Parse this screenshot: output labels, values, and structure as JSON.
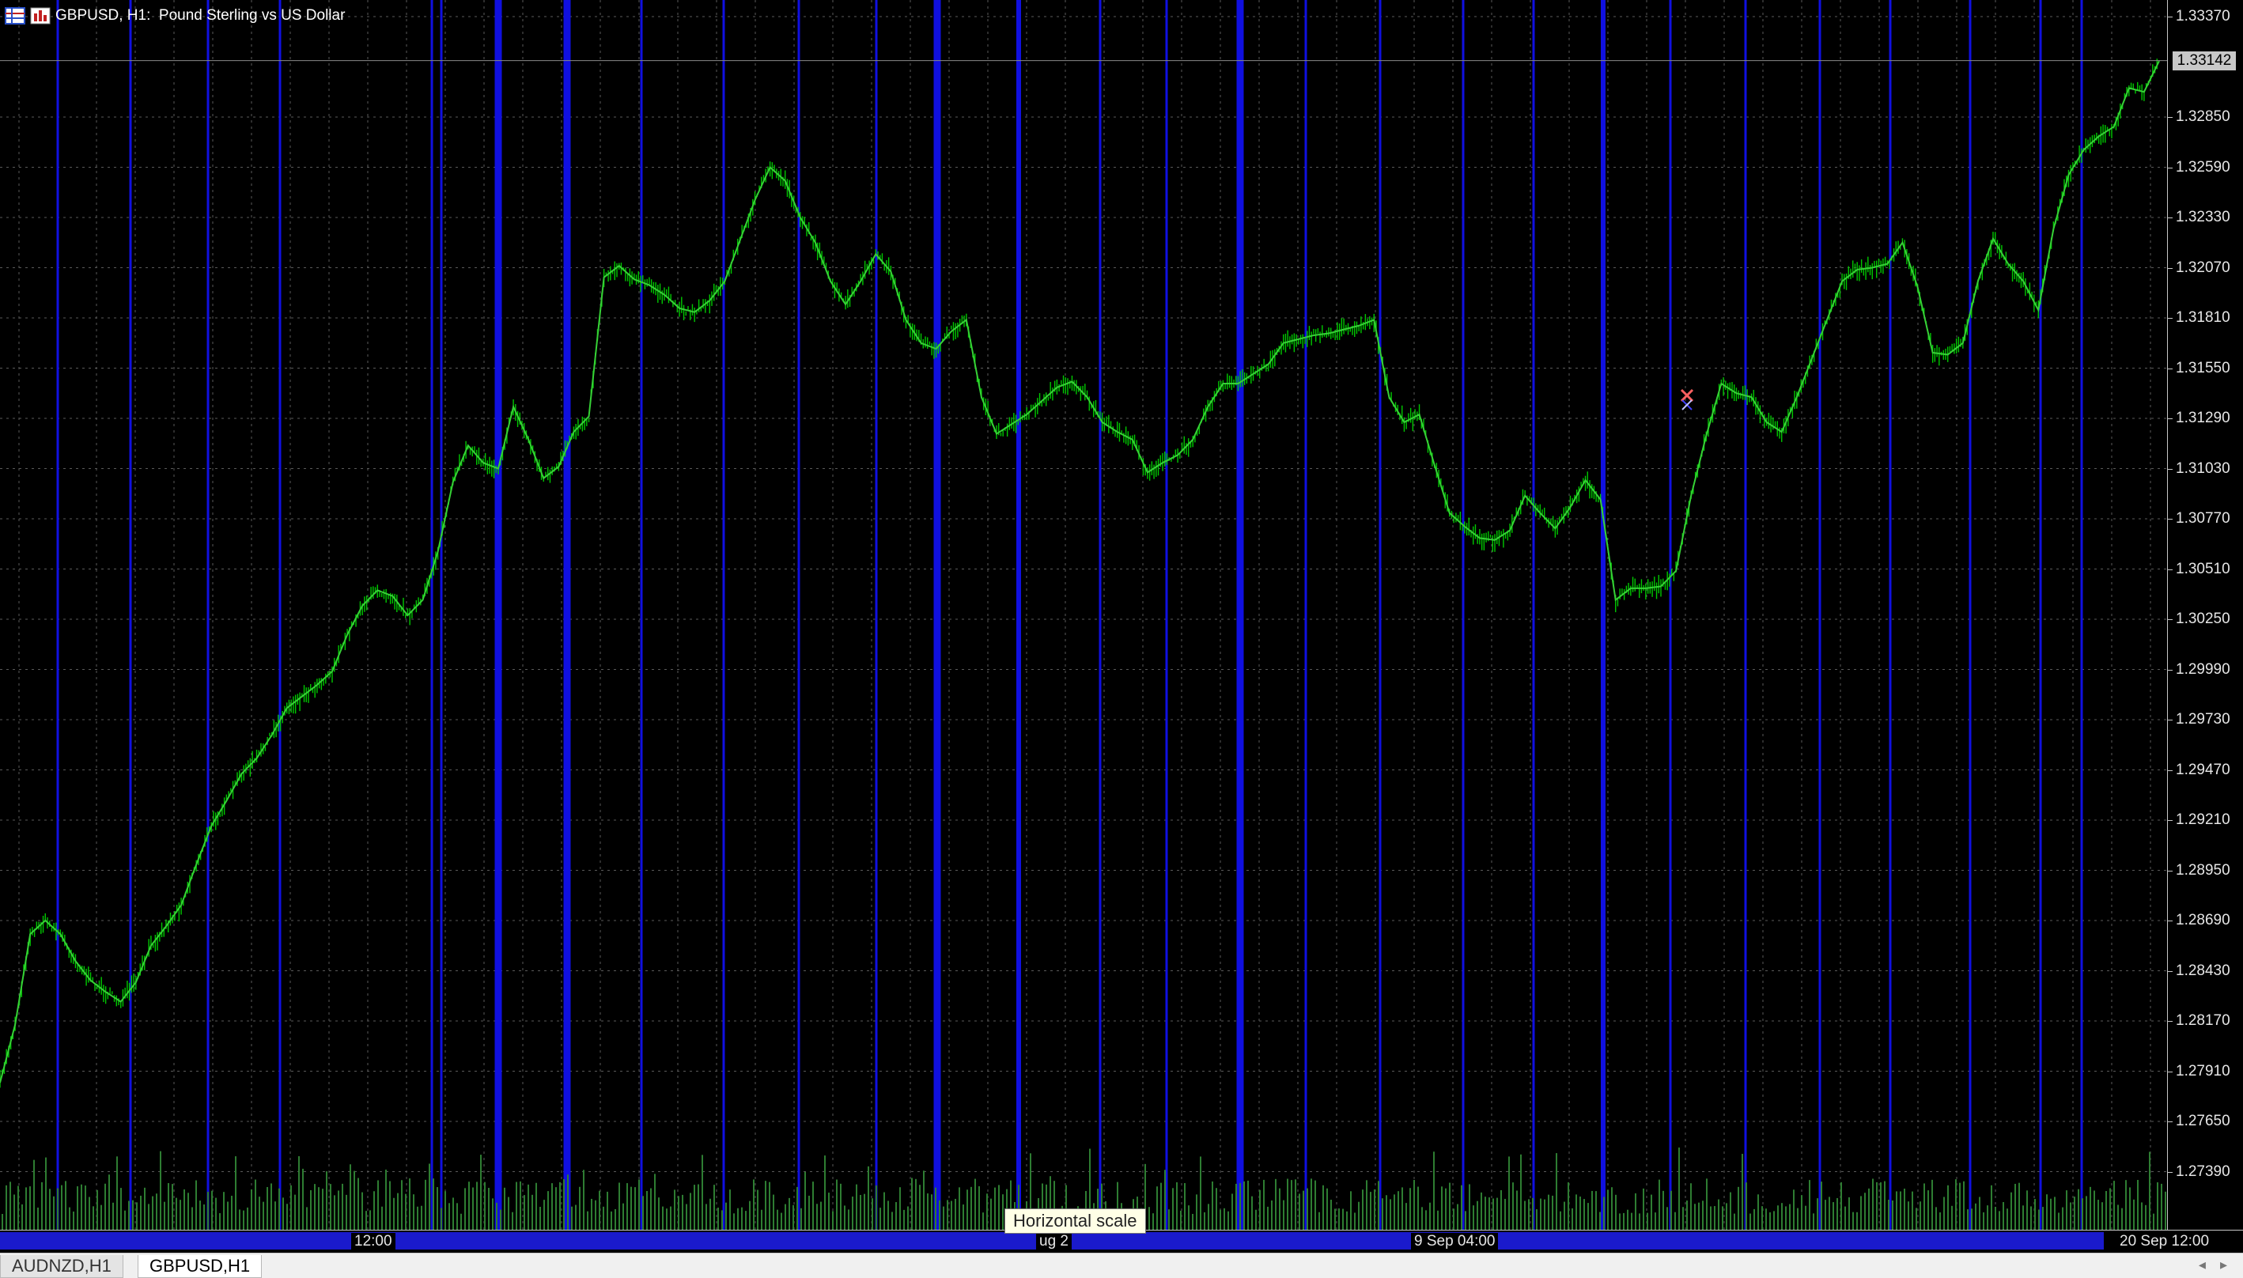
{
  "window": {
    "title": "GBPUSD, H1:  Pound Sterling vs US Dollar"
  },
  "price_scale": {
    "labels": [
      "1.33370",
      "1.32850",
      "1.32590",
      "1.32330",
      "1.32070",
      "1.31810",
      "1.31550",
      "1.31290",
      "1.31030",
      "1.30770",
      "1.30510",
      "1.30250",
      "1.29990",
      "1.29730",
      "1.29470",
      "1.29210",
      "1.28950",
      "1.28690",
      "1.28430",
      "1.28170",
      "1.27910",
      "1.27650",
      "1.27390"
    ],
    "current_price": "1.33142"
  },
  "time_scale": {
    "labels": [
      "12:00",
      "9 Sep 04:00",
      "20 Sep 12:00"
    ],
    "partial_label": "ug 2"
  },
  "tooltip": {
    "text": "Horizontal scale"
  },
  "tabs": [
    {
      "label": "AUDNZD,H1",
      "active": false
    },
    {
      "label": "GBPUSD,H1",
      "active": true
    }
  ],
  "colors": {
    "background": "#000000",
    "candles": "#00c800",
    "volume": "#2e7d32",
    "vertical_lines": "#1010e0",
    "grid": "#5a5a5a",
    "current_price_line": "#a0a0a0",
    "tooltip_bg": "#ffffe6"
  },
  "icons": {
    "menu": "grid-menu-icon",
    "chart": "chart-type-icon",
    "trade_marker": "trade-cross-icon",
    "scroll_left": "chevron-left-icon",
    "scroll_right": "chevron-right-icon"
  },
  "chart_data": {
    "type": "line",
    "symbol": "GBPUSD",
    "timeframe": "H1",
    "ylim": [
      1.2726,
      1.335
    ],
    "y_ticks": [
      1.3337,
      1.3285,
      1.3259,
      1.3233,
      1.3207,
      1.3181,
      1.3155,
      1.3129,
      1.3103,
      1.3077,
      1.3051,
      1.3025,
      1.2999,
      1.2973,
      1.2947,
      1.2921,
      1.2895,
      1.2869,
      1.2843,
      1.2817,
      1.2791,
      1.2765,
      1.2739
    ],
    "current_price": 1.33142,
    "series": [
      {
        "values": [
          1.2785,
          1.2815,
          1.2862,
          1.2869,
          1.2862,
          1.2848,
          1.2838,
          1.2832,
          1.2827,
          1.2837,
          1.2856,
          1.2866,
          1.2877,
          1.2898,
          1.2918,
          1.2931,
          1.2945,
          1.2953,
          1.2965,
          1.2979,
          1.2985,
          1.2991,
          1.2998,
          1.3017,
          1.3032,
          1.304,
          1.3037,
          1.3027,
          1.3035,
          1.306,
          1.3096,
          1.3115,
          1.3106,
          1.3103,
          1.3135,
          1.3118,
          1.3098,
          1.3104,
          1.3122,
          1.313,
          1.3202,
          1.3208,
          1.3201,
          1.3198,
          1.3193,
          1.3186,
          1.3184,
          1.319,
          1.32,
          1.3221,
          1.3242,
          1.3259,
          1.3252,
          1.3233,
          1.322,
          1.32,
          1.3188,
          1.32,
          1.3214,
          1.3205,
          1.318,
          1.3168,
          1.3165,
          1.3174,
          1.318,
          1.314,
          1.3121,
          1.3126,
          1.3131,
          1.3138,
          1.3145,
          1.3148,
          1.314,
          1.3127,
          1.3122,
          1.3118,
          1.3101,
          1.3106,
          1.311,
          1.3118,
          1.3135,
          1.3147,
          1.3147,
          1.3152,
          1.3157,
          1.3168,
          1.317,
          1.3172,
          1.3173,
          1.3175,
          1.3177,
          1.318,
          1.314,
          1.3127,
          1.3131,
          1.3105,
          1.308,
          1.3073,
          1.3067,
          1.3066,
          1.3071,
          1.3089,
          1.308,
          1.3072,
          1.3083,
          1.3097,
          1.3087,
          1.3035,
          1.3041,
          1.3041,
          1.3042,
          1.305,
          1.3089,
          1.312,
          1.3147,
          1.3142,
          1.314,
          1.3127,
          1.3122,
          1.314,
          1.316,
          1.318,
          1.32,
          1.3206,
          1.3207,
          1.3209,
          1.322,
          1.3197,
          1.3163,
          1.3162,
          1.3168,
          1.32,
          1.3222,
          1.3209,
          1.32,
          1.3185,
          1.3227,
          1.3255,
          1.3268,
          1.3275,
          1.328,
          1.33,
          1.3298,
          1.3314
        ]
      }
    ]
  }
}
